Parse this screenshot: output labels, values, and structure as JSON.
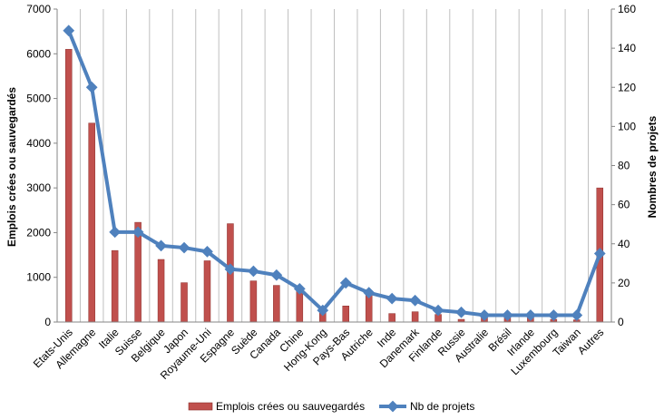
{
  "chart_data": {
    "type": "bar+line",
    "categories": [
      "Etats-Unis",
      "Allemagne",
      "Italie",
      "Suisse",
      "Belgique",
      "Japon",
      "Royaume-Uni",
      "Espagne",
      "Suède",
      "Canada",
      "Chine",
      "Hong-Kong",
      "Pays-Bas",
      "Autriche",
      "Inde",
      "Danemark",
      "Finlande",
      "Russie",
      "Australie",
      "Brésil",
      "Irlande",
      "Luxembourg",
      "Taiwan",
      "Autres"
    ],
    "series": [
      {
        "name": "Emplois crées ou sauvegardés",
        "kind": "bar",
        "axis": "left",
        "color": "#C0504D",
        "values": [
          6100,
          4450,
          1600,
          2230,
          1400,
          880,
          1370,
          2200,
          920,
          820,
          700,
          240,
          360,
          650,
          190,
          230,
          170,
          60,
          100,
          90,
          110,
          60,
          50,
          3000
        ]
      },
      {
        "name": "Nb de projets",
        "kind": "line",
        "axis": "right",
        "color": "#4F81BD",
        "values": [
          149,
          120,
          46,
          46,
          39,
          38,
          36,
          27,
          26,
          24,
          17,
          6,
          20,
          15,
          12,
          11,
          6,
          5,
          3.5,
          3.5,
          3.5,
          3.5,
          3.5,
          35
        ]
      }
    ],
    "y_left": {
      "label": "Emplois crées ou sauvegardés",
      "ylim": [
        0,
        7000
      ],
      "ticks": [
        "0",
        "1000",
        "2000",
        "3000",
        "4000",
        "5000",
        "6000",
        "7000"
      ]
    },
    "y_right": {
      "label": "Nombres de projets",
      "ylim": [
        0,
        160
      ],
      "ticks": [
        "0",
        "20",
        "40",
        "60",
        "80",
        "100",
        "120",
        "140",
        "160"
      ]
    },
    "grid": "vertical",
    "legend": "bottom"
  }
}
